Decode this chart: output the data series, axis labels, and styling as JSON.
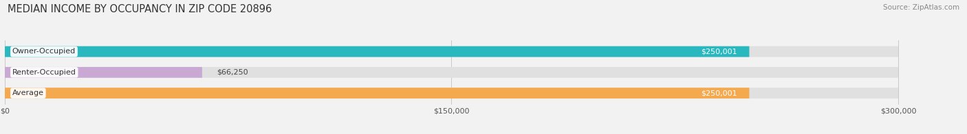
{
  "title": "MEDIAN INCOME BY OCCUPANCY IN ZIP CODE 20896",
  "source": "Source: ZipAtlas.com",
  "categories": [
    "Owner-Occupied",
    "Renter-Occupied",
    "Average"
  ],
  "values": [
    250001,
    66250,
    250001
  ],
  "bar_colors": [
    "#2ab8c0",
    "#c9a8d4",
    "#f5a94e"
  ],
  "bar_labels": [
    "$250,001",
    "$66,250",
    "$250,001"
  ],
  "xlim": [
    0,
    300000
  ],
  "xticks": [
    0,
    150000,
    300000
  ],
  "xticklabels": [
    "$0",
    "$150,000",
    "$300,000"
  ],
  "bg_color": "#f2f2f2",
  "bar_bg_color": "#e0e0e0",
  "title_fontsize": 10.5,
  "source_fontsize": 7.5,
  "label_fontsize": 8,
  "value_fontsize": 8,
  "tick_fontsize": 8
}
